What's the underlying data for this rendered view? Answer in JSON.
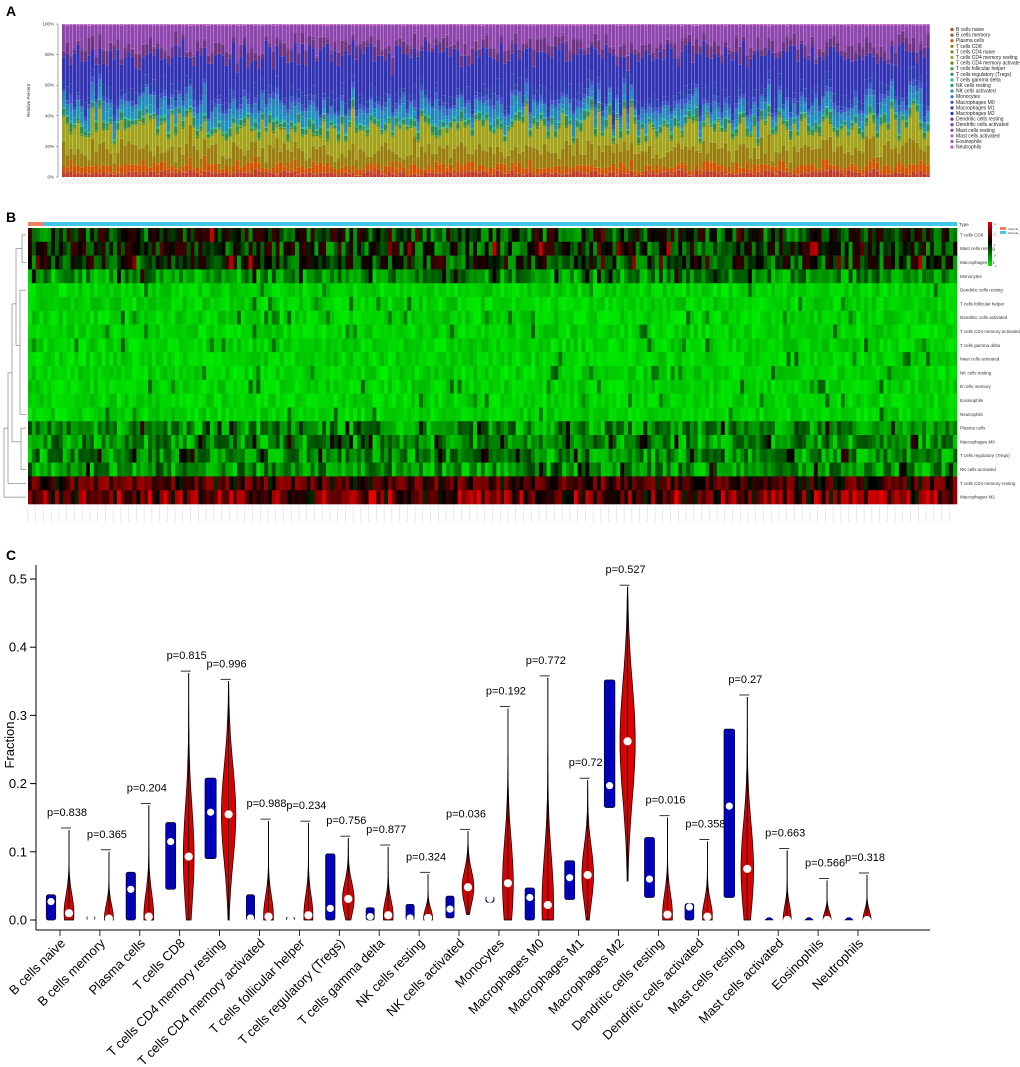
{
  "panels": {
    "a": "A",
    "b": "B",
    "c": "C"
  },
  "colors": {
    "blue": "#0000cc",
    "red": "#dd0000",
    "heat_low": "#00ee00",
    "heat_mid": "#000000",
    "heat_high": "#ee0000",
    "annot_normal": "#f08060",
    "annot_tumor": "#40c8e8"
  },
  "chart_data": [
    {
      "id": "A",
      "type": "bar",
      "stacked": true,
      "ylabel": "Relative Percent",
      "ylim": [
        0,
        100
      ],
      "yticks": [
        "0%",
        "20%",
        "40%",
        "60%",
        "80%",
        "100%"
      ],
      "n_samples": 240,
      "legend_position": "right",
      "series": [
        {
          "name": "B cells naive",
          "color": "#c0392b",
          "mean_percent": 2.5
        },
        {
          "name": "B cells memory",
          "color": "#a0522d",
          "mean_percent": 0.6
        },
        {
          "name": "Plasma cells",
          "color": "#d35400",
          "mean_percent": 4.5
        },
        {
          "name": "T cells CD8",
          "color": "#9a7d0a",
          "mean_percent": 11
        },
        {
          "name": "T cells CD4 naive",
          "color": "#7f8c1d",
          "mean_percent": 0.3
        },
        {
          "name": "T cells CD4 memory resting",
          "color": "#a3a31a",
          "mean_percent": 15
        },
        {
          "name": "T cells CD4 memory activated",
          "color": "#5b8c1d",
          "mean_percent": 0.8
        },
        {
          "name": "T cells follicular helper",
          "color": "#3d9a40",
          "mean_percent": 0.7
        },
        {
          "name": "T cells regulatory (Tregs)",
          "color": "#2e8b57",
          "mean_percent": 3.5
        },
        {
          "name": "T cells gamma delta",
          "color": "#1abc9c",
          "mean_percent": 0.8
        },
        {
          "name": "NK cells resting",
          "color": "#16a085",
          "mean_percent": 0.7
        },
        {
          "name": "NK cells activated",
          "color": "#1e90c0",
          "mean_percent": 5
        },
        {
          "name": "Monocytes",
          "color": "#2980b9",
          "mean_percent": 5
        },
        {
          "name": "Macrophages M0",
          "color": "#3a4fc8",
          "mean_percent": 3
        },
        {
          "name": "Macrophages M1",
          "color": "#2c3eaf",
          "mean_percent": 6.5
        },
        {
          "name": "Macrophages M2",
          "color": "#3232b4",
          "mean_percent": 25
        },
        {
          "name": "Dendritic cells resting",
          "color": "#6c3483",
          "mean_percent": 6.5
        },
        {
          "name": "Dendritic cells activated",
          "color": "#7d3c98",
          "mean_percent": 1
        },
        {
          "name": "Mast cells resting",
          "color": "#8e44ad",
          "mean_percent": 13
        },
        {
          "name": "Mast cells activated",
          "color": "#a569bd",
          "mean_percent": 0.3
        },
        {
          "name": "Eosinophils",
          "color": "#b34db3",
          "mean_percent": 0.2
        },
        {
          "name": "Neutrophils",
          "color": "#c94fc9",
          "mean_percent": 0.3
        }
      ]
    },
    {
      "id": "B",
      "type": "heatmap",
      "annotation_title": "Type",
      "annotation_legend": [
        "Sample_Normal",
        "Sample_Tumor"
      ],
      "color_scale": {
        "min": -1,
        "max": 3,
        "ticks": [
          "3",
          "2",
          "1",
          "0",
          "-1"
        ]
      },
      "n_samples": 240,
      "rows": [
        "T cells CD8",
        "Mast cells resting",
        "Macrophages M1",
        "Monocytes",
        "Dendritic cells resting",
        "T cells follicular helper",
        "Dendritic cells activated",
        "T cells CD4 memory activated",
        "T cells gamma delta",
        "Mast cells activated",
        "NK cells resting",
        "B cells memory",
        "Eosinophils",
        "Neutrophils",
        "Plasma cells",
        "Macrophages M0",
        "T cells regulatory (Tregs)",
        "NK cells activated",
        "T cells CD4 memory resting",
        "Macrophages M2"
      ],
      "row_levels": [
        0.7,
        0.6,
        0.55,
        0.4,
        0.1,
        0.08,
        0.06,
        0.05,
        0.08,
        0.02,
        0.03,
        0.02,
        0.03,
        0.02,
        0.25,
        0.3,
        0.18,
        0.2,
        1.4,
        2.2
      ]
    },
    {
      "id": "C",
      "type": "violin",
      "ylabel": "Fraction",
      "ylim": [
        0,
        0.52
      ],
      "yticks": [
        0.0,
        0.1,
        0.2,
        0.3,
        0.4,
        0.5
      ],
      "ytick_labels": [
        "0.0",
        "0.1",
        "0.2",
        "0.3",
        "0.4",
        "0.5"
      ],
      "groups": [
        "Normal",
        "Tumor"
      ],
      "categories": [
        "B cells naive",
        "B cells memory",
        "Plasma cells",
        "T cells CD8",
        "T cells CD4 memory resting",
        "T cells CD4 memory activated",
        "T cells follicular helper",
        "T cells regulatory (Tregs)",
        "T cells gamma delta",
        "NK cells resting",
        "NK cells activated",
        "Monocytes",
        "Macrophages M0",
        "Macrophages M1",
        "Macrophages M2",
        "Dendritic cells resting",
        "Dendritic cells activated",
        "Mast cells resting",
        "Mast cells activated",
        "Eosinophils",
        "Neutrophils"
      ],
      "pvalues": [
        "p=0.838",
        "p=0.365",
        "p=0.204",
        "p=0.815",
        "p=0.996",
        "p=0.988",
        "p=0.234",
        "p=0.756",
        "p=0.877",
        "p=0.324",
        "p=0.036",
        "p=0.192",
        "p=0.772",
        "p=0.72",
        "p=0.527",
        "p=0.016",
        "p=0.358",
        "p=0.27",
        "p=0.663",
        "p=0.566",
        "p=0.318"
      ],
      "normal": [
        {
          "min": 0.0,
          "max": 0.037,
          "median": 0.027,
          "halfwidth": 0.7
        },
        {
          "min": 0.0,
          "max": 0.005,
          "median": 0.002,
          "halfwidth": 0.6
        },
        {
          "min": 0.0,
          "max": 0.07,
          "median": 0.045,
          "halfwidth": 0.7
        },
        {
          "min": 0.045,
          "max": 0.143,
          "median": 0.115,
          "halfwidth": 0.75
        },
        {
          "min": 0.09,
          "max": 0.208,
          "median": 0.158,
          "halfwidth": 0.85
        },
        {
          "min": 0.0,
          "max": 0.037,
          "median": 0.003,
          "halfwidth": 0.6
        },
        {
          "min": 0.0,
          "max": 0.004,
          "median": 0.001,
          "halfwidth": 0.6
        },
        {
          "min": 0.0,
          "max": 0.097,
          "median": 0.017,
          "halfwidth": 0.7
        },
        {
          "min": 0.0,
          "max": 0.018,
          "median": 0.005,
          "halfwidth": 0.6
        },
        {
          "min": 0.0,
          "max": 0.023,
          "median": 0.003,
          "halfwidth": 0.6
        },
        {
          "min": 0.003,
          "max": 0.035,
          "median": 0.016,
          "halfwidth": 0.6
        },
        {
          "min": 0.026,
          "max": 0.034,
          "median": 0.031,
          "halfwidth": 0.6
        },
        {
          "min": 0.0,
          "max": 0.047,
          "median": 0.033,
          "halfwidth": 0.7
        },
        {
          "min": 0.03,
          "max": 0.087,
          "median": 0.062,
          "halfwidth": 0.75
        },
        {
          "min": 0.165,
          "max": 0.352,
          "median": 0.197,
          "halfwidth": 0.8
        },
        {
          "min": 0.033,
          "max": 0.121,
          "median": 0.06,
          "halfwidth": 0.75
        },
        {
          "min": 0.0,
          "max": 0.024,
          "median": 0.019,
          "halfwidth": 0.65
        },
        {
          "min": 0.033,
          "max": 0.28,
          "median": 0.167,
          "halfwidth": 0.8
        },
        {
          "min": 0.0,
          "max": 0.0,
          "median": 0.0,
          "halfwidth": 0.0
        },
        {
          "min": 0.0,
          "max": 0.0,
          "median": 0.0,
          "halfwidth": 0.0
        },
        {
          "min": 0.0,
          "max": 0.0,
          "median": 0.0,
          "halfwidth": 0.0
        }
      ],
      "tumor": [
        {
          "min": 0.0,
          "max": 0.132,
          "median": 0.01,
          "halfwidth": 0.55
        },
        {
          "min": 0.0,
          "max": 0.1,
          "median": 0.002,
          "halfwidth": 0.5
        },
        {
          "min": 0.0,
          "max": 0.168,
          "median": 0.005,
          "halfwidth": 0.55
        },
        {
          "min": 0.0,
          "max": 0.362,
          "median": 0.093,
          "halfwidth": 0.6
        },
        {
          "min": 0.0,
          "max": 0.35,
          "median": 0.155,
          "halfwidth": 0.8
        },
        {
          "min": 0.0,
          "max": 0.145,
          "median": 0.005,
          "halfwidth": 0.55
        },
        {
          "min": 0.0,
          "max": 0.142,
          "median": 0.007,
          "halfwidth": 0.5
        },
        {
          "min": 0.0,
          "max": 0.12,
          "median": 0.031,
          "halfwidth": 0.65
        },
        {
          "min": 0.0,
          "max": 0.107,
          "median": 0.007,
          "halfwidth": 0.55
        },
        {
          "min": 0.0,
          "max": 0.067,
          "median": 0.003,
          "halfwidth": 0.5
        },
        {
          "min": 0.008,
          "max": 0.13,
          "median": 0.048,
          "halfwidth": 0.65
        },
        {
          "min": 0.0,
          "max": 0.31,
          "median": 0.054,
          "halfwidth": 0.6
        },
        {
          "min": 0.0,
          "max": 0.355,
          "median": 0.022,
          "halfwidth": 0.65
        },
        {
          "min": 0.0,
          "max": 0.205,
          "median": 0.066,
          "halfwidth": 0.65
        },
        {
          "min": 0.057,
          "max": 0.488,
          "median": 0.262,
          "halfwidth": 0.85
        },
        {
          "min": 0.0,
          "max": 0.15,
          "median": 0.008,
          "halfwidth": 0.55
        },
        {
          "min": 0.0,
          "max": 0.115,
          "median": 0.005,
          "halfwidth": 0.55
        },
        {
          "min": 0.0,
          "max": 0.327,
          "median": 0.075,
          "halfwidth": 0.7
        },
        {
          "min": 0.0,
          "max": 0.102,
          "median": 0.0,
          "halfwidth": 0.45
        },
        {
          "min": 0.0,
          "max": 0.058,
          "median": 0.0,
          "halfwidth": 0.45
        },
        {
          "min": 0.0,
          "max": 0.066,
          "median": 0.0,
          "halfwidth": 0.45
        }
      ]
    }
  ]
}
